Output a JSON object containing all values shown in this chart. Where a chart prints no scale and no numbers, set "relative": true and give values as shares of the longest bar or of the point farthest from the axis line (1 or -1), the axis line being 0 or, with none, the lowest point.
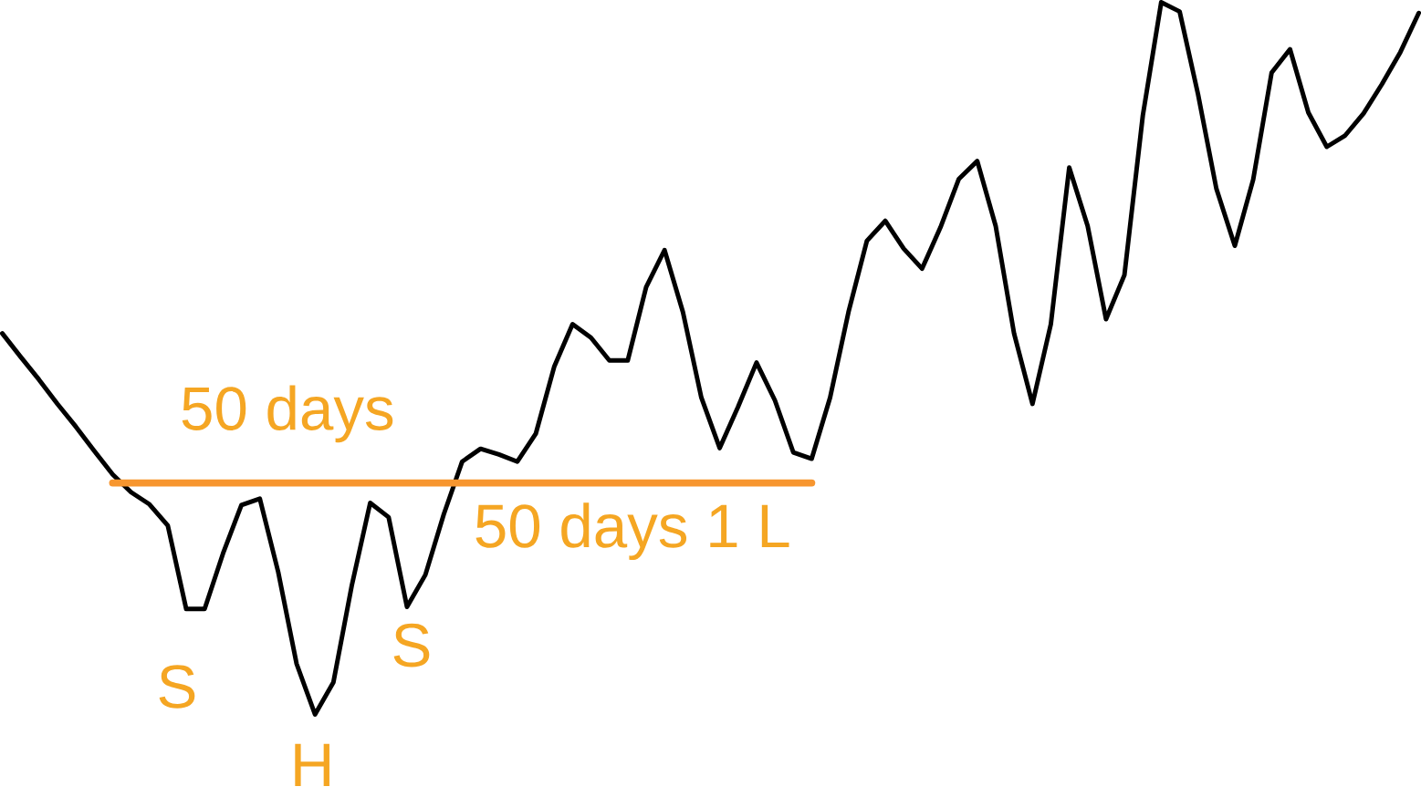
{
  "chart_data": {
    "type": "line",
    "relative": true,
    "categories": [
      null,
      null,
      null,
      null,
      null,
      null,
      null,
      null,
      null,
      null,
      null,
      null,
      null,
      null,
      null,
      null,
      null,
      null,
      null,
      null,
      null,
      null,
      null,
      null,
      null,
      null,
      null,
      null,
      null,
      null,
      null,
      null,
      null,
      null,
      null,
      null,
      null,
      null,
      null,
      null,
      null,
      null,
      null,
      null,
      null,
      null,
      null,
      null,
      null,
      null,
      null,
      null,
      null,
      null,
      null,
      null,
      null,
      null,
      null,
      null,
      null,
      null,
      null,
      null,
      null,
      null,
      null,
      null,
      null,
      null,
      null,
      null,
      null,
      null,
      null,
      null,
      null,
      null
    ],
    "series": [
      {
        "color": "#000000",
        "values": [
          0.535,
          0.502,
          0.47,
          0.436,
          0.404,
          0.37,
          0.337,
          0.312,
          0.295,
          0.265,
          0.148,
          0.148,
          0.226,
          0.294,
          0.303,
          0.2,
          0.071,
          0,
          0.045,
          0.181,
          0.297,
          0.277,
          0.151,
          0.196,
          0.281,
          0.355,
          0.373,
          0.365,
          0.355,
          0.394,
          0.488,
          0.548,
          0.529,
          0.497,
          0.497,
          0.6,
          0.652,
          0.565,
          0.445,
          0.374,
          0.432,
          0.494,
          0.441,
          0.368,
          0.359,
          0.445,
          0.565,
          0.665,
          0.693,
          0.654,
          0.626,
          0.684,
          0.752,
          0.777,
          0.686,
          0.535,
          0.436,
          0.548,
          0.768,
          0.686,
          0.555,
          0.617,
          0.841,
          1,
          0.987,
          0.871,
          0.738,
          0.658,
          0.751,
          0.901,
          0.934,
          0.845,
          0.797,
          0.813,
          0.844,
          0.885,
          0.93,
          0.985
        ]
      },
      {
        "type": "line",
        "color": "#f7962f",
        "values": [
          null,
          null,
          null,
          null,
          null,
          null,
          0.325,
          0.325,
          0.325,
          0.325,
          0.325,
          0.325,
          0.325,
          0.325,
          0.325,
          0.325,
          0.325,
          0.325,
          0.325,
          0.325,
          0.325,
          0.325,
          0.325,
          0.325,
          0.325,
          0.325,
          0.325,
          0.325,
          0.325,
          0.325,
          0.325,
          0.325,
          0.325,
          0.325,
          0.325,
          0.325,
          0.325,
          0.325,
          0.325,
          0.325,
          0.325,
          0.325,
          0.325,
          0.325,
          0.325,
          null,
          null,
          null,
          null,
          null,
          null,
          null,
          null,
          null,
          null,
          null,
          null,
          null,
          null,
          null,
          null,
          null,
          null,
          null,
          null,
          null,
          null,
          null,
          null,
          null,
          null,
          null,
          null,
          null,
          null,
          null,
          null,
          null
        ]
      }
    ],
    "annotations": [
      "50 days",
      "50 days 1 L",
      "S",
      "H",
      "S"
    ]
  }
}
